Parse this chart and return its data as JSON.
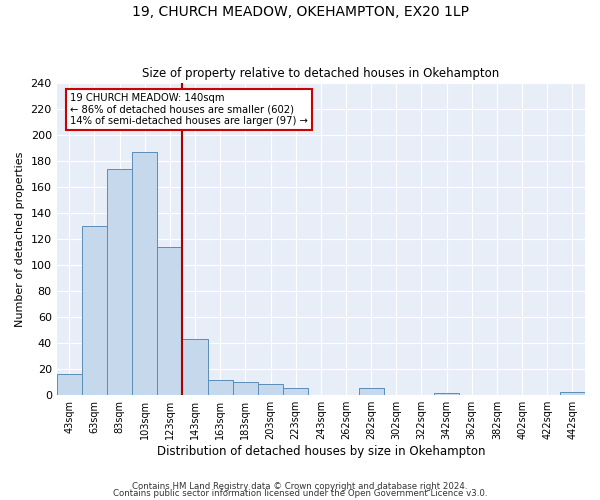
{
  "title": "19, CHURCH MEADOW, OKEHAMPTON, EX20 1LP",
  "subtitle": "Size of property relative to detached houses in Okehampton",
  "xlabel": "Distribution of detached houses by size in Okehampton",
  "ylabel": "Number of detached properties",
  "bin_labels": [
    "43sqm",
    "63sqm",
    "83sqm",
    "103sqm",
    "123sqm",
    "143sqm",
    "163sqm",
    "183sqm",
    "203sqm",
    "223sqm",
    "243sqm",
    "262sqm",
    "282sqm",
    "302sqm",
    "322sqm",
    "342sqm",
    "362sqm",
    "382sqm",
    "402sqm",
    "422sqm",
    "442sqm"
  ],
  "bar_values": [
    16,
    130,
    174,
    187,
    114,
    43,
    11,
    10,
    8,
    5,
    0,
    0,
    5,
    0,
    0,
    1,
    0,
    0,
    0,
    0,
    2
  ],
  "bar_color": "#c6d9ec",
  "bar_edge_color": "#5b8db8",
  "ylim": [
    0,
    240
  ],
  "yticks": [
    0,
    20,
    40,
    60,
    80,
    100,
    120,
    140,
    160,
    180,
    200,
    220,
    240
  ],
  "annotation_title": "19 CHURCH MEADOW: 140sqm",
  "annotation_line1": "← 86% of detached houses are smaller (602)",
  "annotation_line2": "14% of semi-detached houses are larger (97) →",
  "annotation_box_color": "#ffffff",
  "annotation_box_edge": "#cc0000",
  "red_line_color": "#aa0000",
  "ax_bg_color": "#e8eef8",
  "grid_color": "#ffffff",
  "footer1": "Contains HM Land Registry data © Crown copyright and database right 2024.",
  "footer2": "Contains public sector information licensed under the Open Government Licence v3.0."
}
